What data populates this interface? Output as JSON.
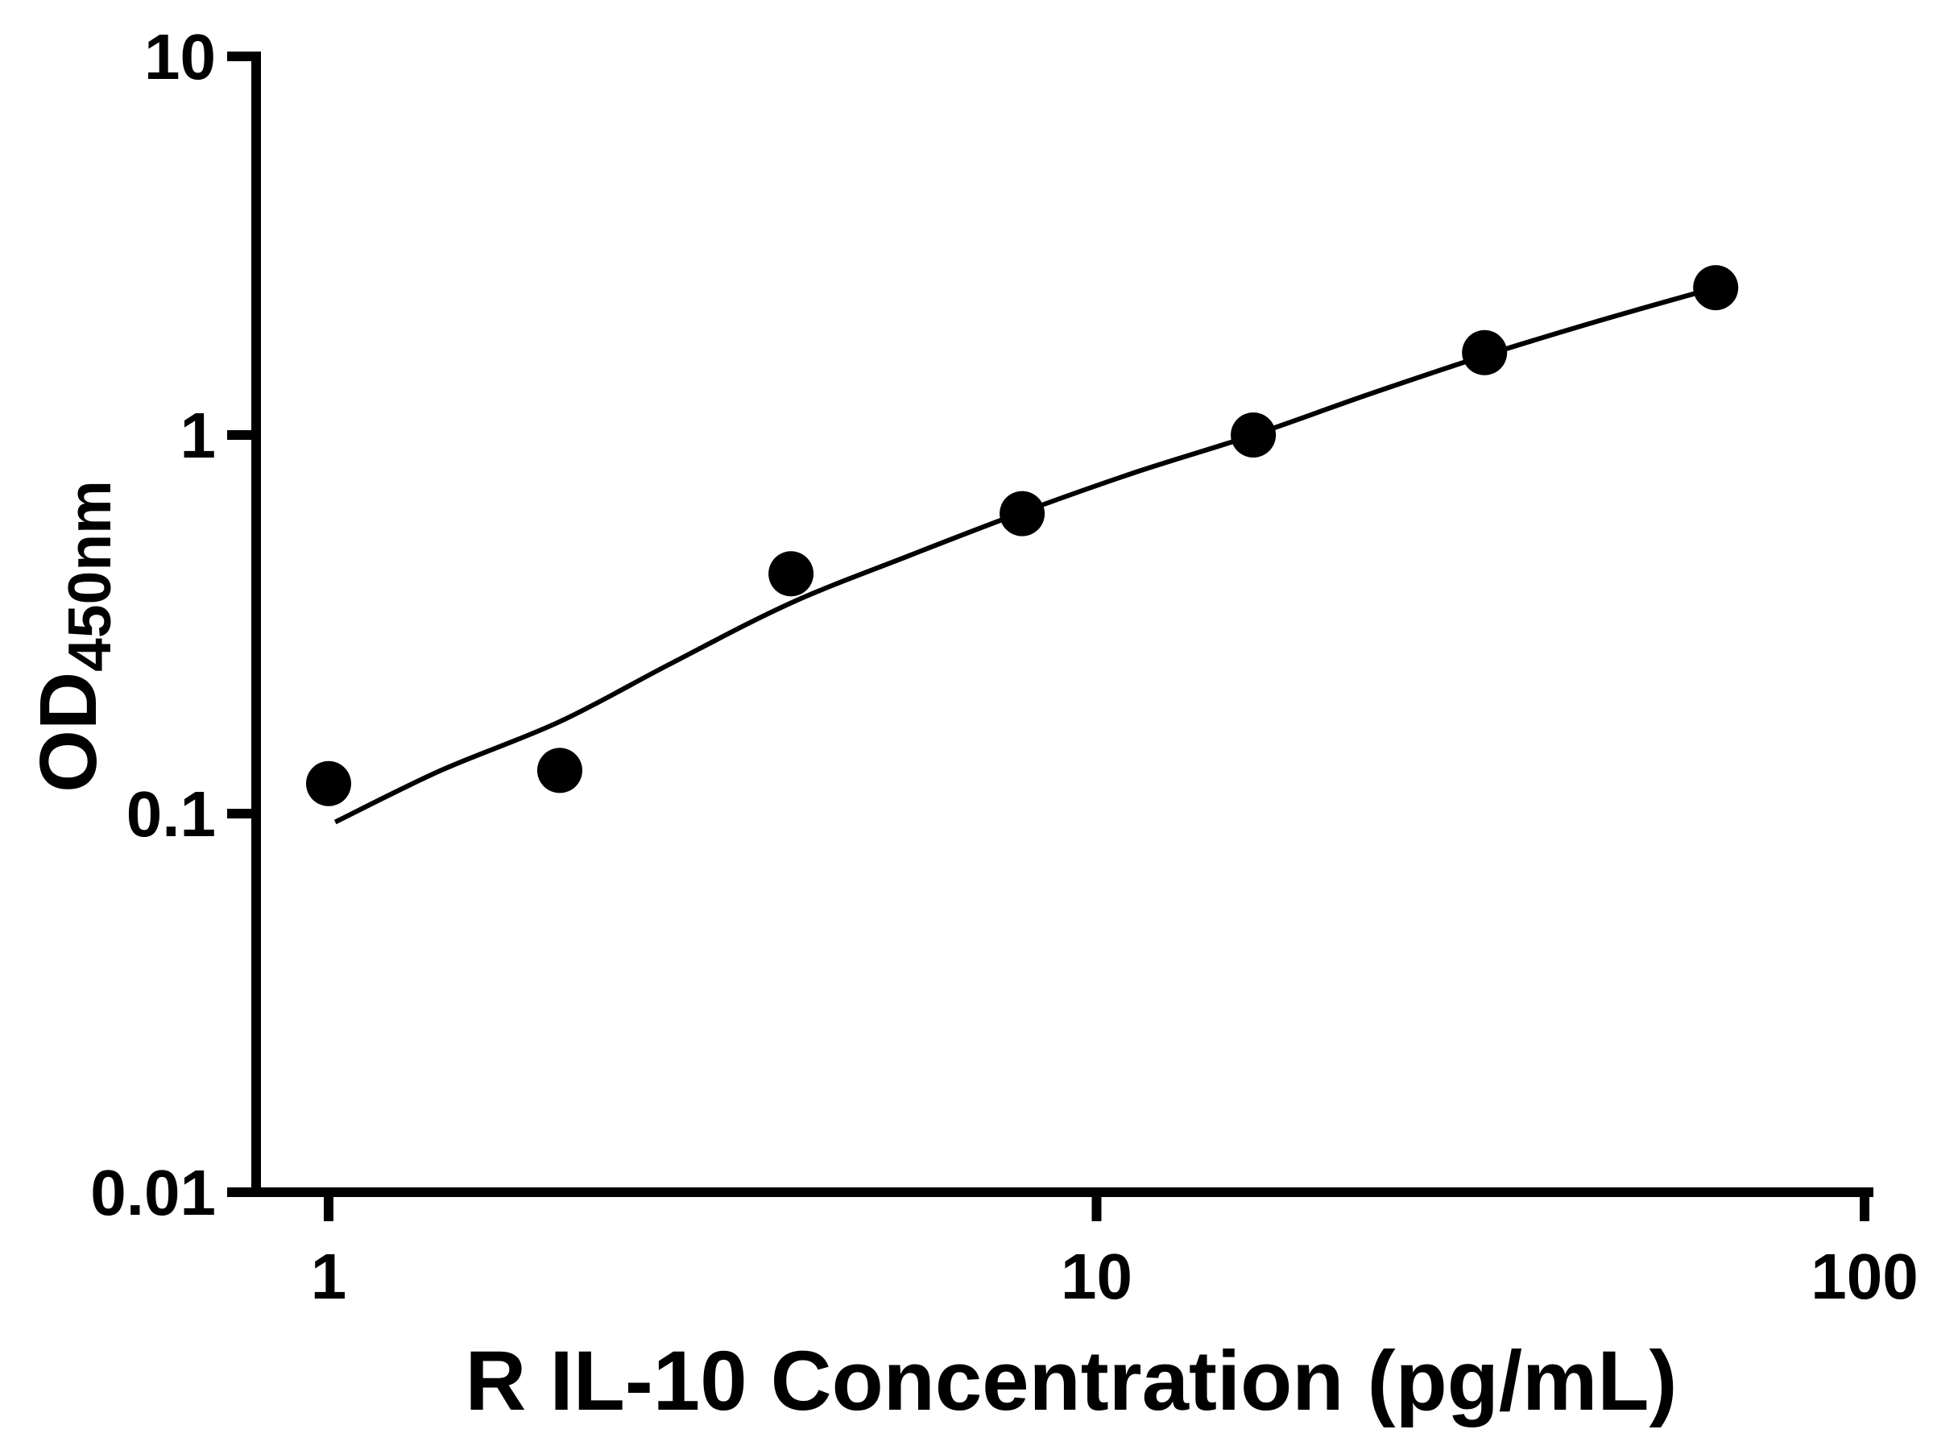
{
  "background": "#ffffff",
  "chart_data": {
    "type": "scatter",
    "title": "",
    "xlabel": "R IL-10 Concentration (pg/mL)",
    "ylabel": "OD450nm",
    "ylabel_main": "OD",
    "ylabel_sub": "450nm",
    "x_scale": "log",
    "y_scale": "log",
    "xlim": [
      1,
      100
    ],
    "ylim": [
      0.01,
      10
    ],
    "x_ticks": [
      1,
      10,
      100
    ],
    "y_ticks": [
      0.01,
      0.1,
      1,
      10
    ],
    "grid": false,
    "legend": null,
    "axis_color": "#000000",
    "marker_color": "#000000",
    "line_color": "#000000",
    "points": {
      "x": [
        1,
        2,
        4,
        8,
        16,
        32,
        64
      ],
      "y": [
        0.12,
        0.13,
        0.43,
        0.62,
        1.0,
        1.65,
        2.45
      ]
    },
    "fit_curve": {
      "x": [
        1.02,
        1.4,
        2,
        2.8,
        4,
        5.7,
        8,
        11.3,
        16,
        22.6,
        32,
        45,
        64
      ],
      "y": [
        0.095,
        0.13,
        0.175,
        0.25,
        0.36,
        0.48,
        0.625,
        0.8,
        1.0,
        1.28,
        1.62,
        2.0,
        2.45
      ]
    }
  }
}
